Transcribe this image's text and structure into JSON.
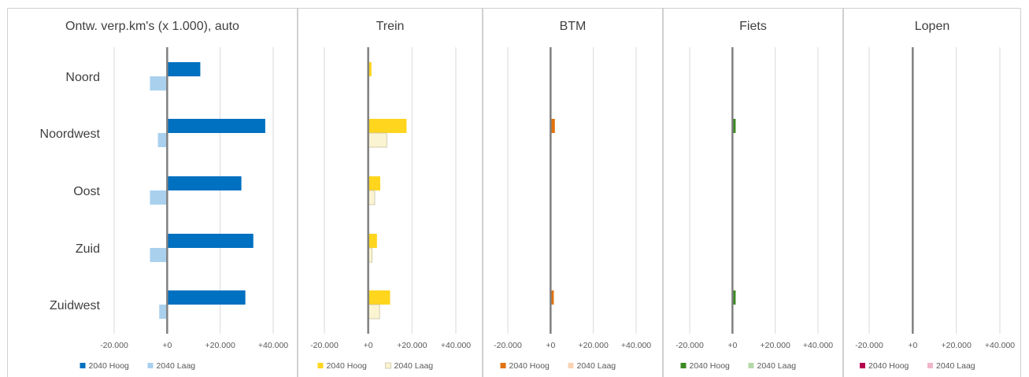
{
  "chart_data": {
    "type": "bar",
    "orientation": "horizontal",
    "categories": [
      "Noord",
      "Noordwest",
      "Oost",
      "Zuid",
      "Zuidwest"
    ],
    "xlim": [
      -20000,
      40000
    ],
    "xticks": [
      -20000,
      0,
      20000,
      40000
    ],
    "xtick_labels": [
      "-20.000",
      "+0",
      "+20.000",
      "+40.000"
    ],
    "grid": true,
    "legend_position": "bottom",
    "panels": [
      {
        "title": "Ontw. verp.km's (x 1.000), auto",
        "series": [
          {
            "name": "2040 Hoog",
            "color": "#0070C0",
            "values": [
              12500,
              37000,
              28000,
              32500,
              29500
            ]
          },
          {
            "name": "2040 Laag",
            "color": "#A9D1EE",
            "values": [
              -6500,
              -3500,
              -6500,
              -6500,
              -3000
            ]
          }
        ]
      },
      {
        "title": "Trein",
        "series": [
          {
            "name": "2040 Hoog",
            "color": "#FFD51E",
            "values": [
              1500,
              17500,
              5500,
              4000,
              10000
            ]
          },
          {
            "name": "2040 Laag",
            "color": "#FBF4D2",
            "values": [
              300,
              8500,
              3000,
              1800,
              5200
            ]
          }
        ]
      },
      {
        "title": "BTM",
        "series": [
          {
            "name": "2040 Hoog",
            "color": "#E2720C",
            "values": [
              0,
              2000,
              0,
              0,
              1500
            ]
          },
          {
            "name": "2040 Laag",
            "color": "#F8D2B3",
            "values": [
              0,
              500,
              0,
              0,
              300
            ]
          }
        ]
      },
      {
        "title": "Fiets",
        "series": [
          {
            "name": "2040 Hoog",
            "color": "#3A8A22",
            "values": [
              0,
              1500,
              0,
              0,
              1500
            ]
          },
          {
            "name": "2040 Laag",
            "color": "#B5D8A8",
            "values": [
              0,
              300,
              0,
              0,
              200
            ]
          }
        ]
      },
      {
        "title": "Lopen",
        "series": [
          {
            "name": "2040 Hoog",
            "color": "#B5004F",
            "values": [
              0,
              0,
              0,
              0,
              0
            ]
          },
          {
            "name": "2040 Laag",
            "color": "#F2B5C8",
            "values": [
              0,
              0,
              0,
              0,
              0
            ]
          }
        ]
      }
    ]
  }
}
